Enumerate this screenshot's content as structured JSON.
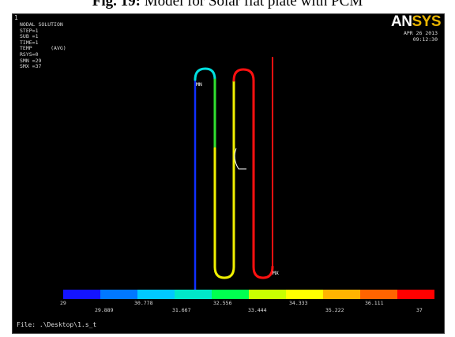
{
  "caption": {
    "prefix": "Fig. 19:",
    "text": " Model for Solar flat plate with PCM"
  },
  "viewport": {
    "window_number": "1",
    "info_lines": [
      "NODAL SOLUTION",
      "",
      "STEP=1",
      "SUB =1",
      "TIME=1",
      "TEMP      (AVG)",
      "RSYS=0",
      "SMN =29",
      "SMX =37"
    ],
    "logo": {
      "main": "AN",
      "accent": "SYS"
    },
    "date": "APR 26 2013",
    "time": "09:12:30",
    "node_labels": {
      "mn": "MN",
      "mx": "MX"
    },
    "file_label": "File: .\\Desktop\\1.s_t"
  },
  "legend": {
    "colors": [
      "#1414ff",
      "#0078ff",
      "#00c8ff",
      "#00e8c8",
      "#00ff50",
      "#c8ff00",
      "#ffff00",
      "#ffb400",
      "#ff6400",
      "#ff0000"
    ],
    "ticks_top": [
      "29",
      "30.778",
      "32.556",
      "34.333",
      "36.111"
    ],
    "ticks_bottom": [
      "29.889",
      "31.667",
      "33.444",
      "35.222",
      "37"
    ]
  },
  "colors": {
    "pipe_blue": "#1030ff",
    "pipe_cyan": "#00e0e0",
    "pipe_green": "#30e030",
    "pipe_yellow": "#f0f000",
    "pipe_red": "#ff1010",
    "pipe_white": "#ffffff"
  }
}
